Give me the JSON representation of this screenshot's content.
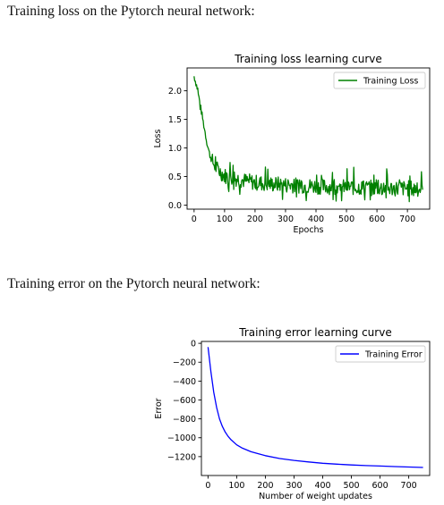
{
  "captions": {
    "first": "Training loss on the Pytorch neural network:",
    "second": "Training error on the Pytorch neural network:"
  },
  "chart_data": [
    {
      "type": "line",
      "title": "Training loss learning curve",
      "xlabel": "Epochs",
      "ylabel": "Loss",
      "xlim": [
        -23,
        773
      ],
      "ylim": [
        -0.07,
        2.4
      ],
      "x_ticks": [
        0,
        100,
        200,
        300,
        400,
        500,
        600,
        700
      ],
      "y_ticks": [
        0.0,
        0.5,
        1.0,
        1.5,
        2.0
      ],
      "y_tick_labels": [
        "0.0",
        "0.5",
        "1.0",
        "1.5",
        "2.0"
      ],
      "grid": false,
      "legend_position": "top-right",
      "series": [
        {
          "name": "Training Loss",
          "color": "#008000",
          "x": [
            0,
            10,
            20,
            30,
            40,
            50,
            60,
            70,
            80,
            90,
            100,
            120,
            140,
            160,
            180,
            200,
            220,
            240,
            260,
            280,
            300,
            320,
            340,
            360,
            380,
            400,
            420,
            440,
            460,
            480,
            500,
            520,
            540,
            560,
            580,
            600,
            620,
            640,
            660,
            680,
            700,
            720,
            740,
            750
          ],
          "y": [
            2.25,
            2.05,
            1.75,
            1.45,
            1.15,
            0.9,
            0.75,
            0.65,
            0.6,
            0.55,
            0.5,
            0.48,
            0.45,
            0.42,
            0.4,
            0.38,
            0.37,
            0.36,
            0.35,
            0.35,
            0.34,
            0.34,
            0.33,
            0.33,
            0.32,
            0.32,
            0.31,
            0.31,
            0.31,
            0.3,
            0.3,
            0.3,
            0.3,
            0.29,
            0.29,
            0.29,
            0.29,
            0.28,
            0.28,
            0.28,
            0.28,
            0.28,
            0.27,
            0.27
          ]
        }
      ]
    },
    {
      "type": "line",
      "title": "Training error learning curve",
      "xlabel": "Number of weight updates",
      "ylabel": "Error",
      "xlim": [
        -23,
        773
      ],
      "ylim": [
        -1400,
        20
      ],
      "x_ticks": [
        0,
        100,
        200,
        300,
        400,
        500,
        600,
        700
      ],
      "y_ticks": [
        0,
        -200,
        -400,
        -600,
        -800,
        -1000,
        -1200
      ],
      "y_tick_labels": [
        "0",
        "−200",
        "−400",
        "−600",
        "−800",
        "−1000",
        "−1200"
      ],
      "grid": false,
      "legend_position": "top-right",
      "series": [
        {
          "name": "Training Error",
          "color": "#0000ff",
          "x": [
            0,
            10,
            20,
            30,
            40,
            50,
            60,
            70,
            80,
            100,
            120,
            150,
            200,
            250,
            300,
            350,
            400,
            450,
            500,
            550,
            600,
            650,
            700,
            750
          ],
          "y": [
            -40,
            -300,
            -520,
            -680,
            -800,
            -880,
            -940,
            -985,
            -1020,
            -1075,
            -1110,
            -1148,
            -1190,
            -1220,
            -1240,
            -1256,
            -1270,
            -1280,
            -1288,
            -1295,
            -1300,
            -1305,
            -1310,
            -1315
          ]
        }
      ]
    }
  ]
}
